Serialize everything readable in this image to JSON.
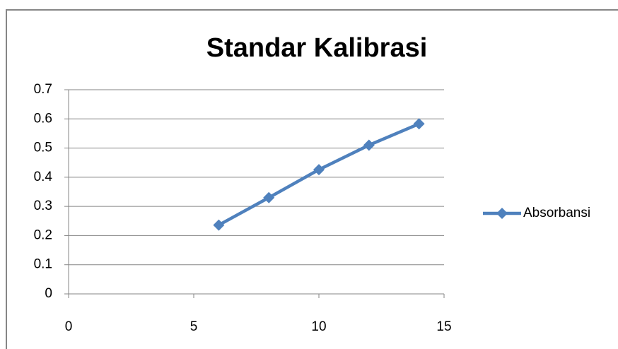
{
  "chart_data": {
    "type": "line",
    "title": "Standar Kalibrasi",
    "x": [
      6,
      8,
      10,
      12,
      14
    ],
    "series": [
      {
        "name": "Absorbansi",
        "color": "#4f81bd",
        "values": [
          0.236,
          0.33,
          0.426,
          0.51,
          0.583
        ]
      }
    ],
    "xlim": [
      0,
      15
    ],
    "xticks": [
      0,
      5,
      10,
      15
    ],
    "ylim": [
      0,
      0.7
    ],
    "yticks": [
      0,
      0.1,
      0.2,
      0.3,
      0.4,
      0.5,
      0.6,
      0.7
    ],
    "grid": true,
    "legend": "right"
  }
}
